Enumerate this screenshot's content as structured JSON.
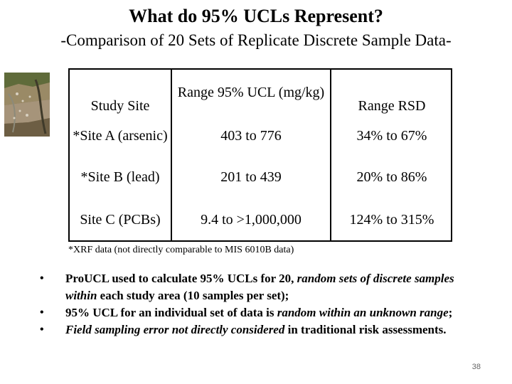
{
  "slide": {
    "title": "What do 95% UCLs Represent?",
    "subtitle": "-Comparison of 20 Sets of Replicate Discrete Sample Data-",
    "page_number": "38"
  },
  "table": {
    "headers": [
      "Study Site",
      "Range 95% UCL (mg/kg)",
      "Range RSD"
    ],
    "rows": [
      {
        "site": "*Site A (arsenic)",
        "ucl": "403 to 776",
        "rsd": "34% to 67%"
      },
      {
        "site": "*Site B (lead)",
        "ucl": "201 to 439",
        "rsd": "20% to 86%"
      },
      {
        "site": "Site C (PCBs)",
        "ucl": "9.4 to >1,000,000",
        "rsd": "124% to 315%"
      }
    ],
    "footnote": "*XRF data (not directly comparable to MIS 6010B data)"
  },
  "bullets": [
    {
      "parts": [
        {
          "text": "ProUCL used to calculate 95% UCLs for 20, ",
          "italic": false
        },
        {
          "text": "random sets of discrete samples within",
          "italic": true
        },
        {
          "text": " each study area (10 samples per set);",
          "italic": false
        }
      ]
    },
    {
      "parts": [
        {
          "text": "95% UCL for an individual set of data is ",
          "italic": false
        },
        {
          "text": "random within an unknown range",
          "italic": true
        },
        {
          "text": ";",
          "italic": false
        }
      ]
    },
    {
      "parts": [
        {
          "text": "Field sampling error not directly considered",
          "italic": true
        },
        {
          "text": " in traditional risk assessments.",
          "italic": false
        }
      ]
    }
  ],
  "bullet_marker": "•",
  "colors": {
    "text": "#000000",
    "page_number": "#666666"
  }
}
